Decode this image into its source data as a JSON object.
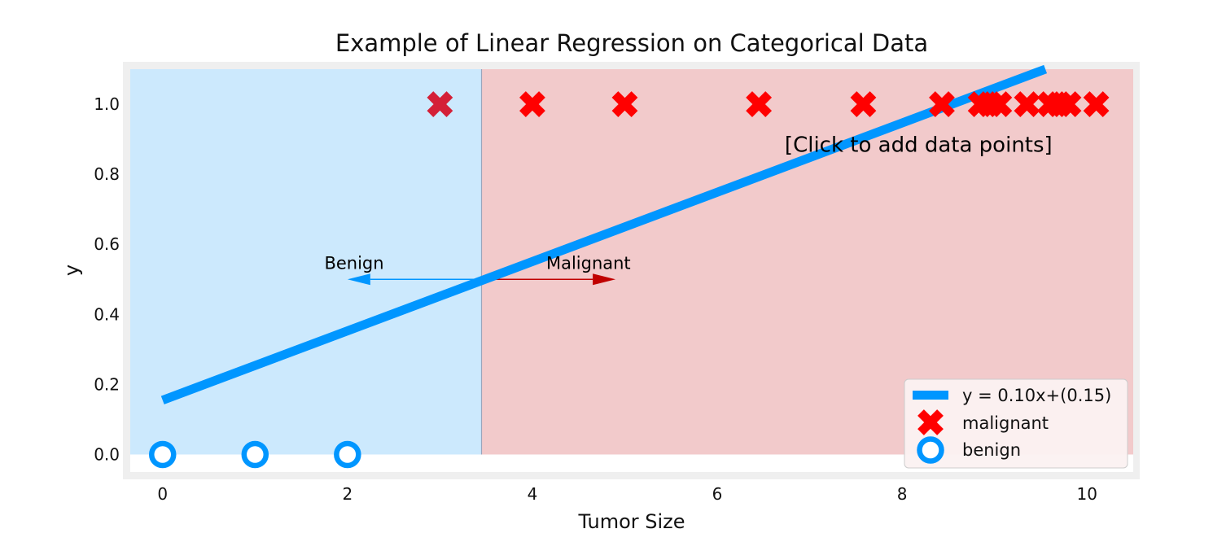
{
  "chart_data": {
    "type": "scatter",
    "title": "Example of Linear Regression on Categorical Data",
    "xlabel": "Tumor Size",
    "ylabel": "y",
    "xlim": [
      -0.35,
      10.5
    ],
    "ylim": [
      -0.05,
      1.1
    ],
    "x_ticks": [
      0,
      2,
      4,
      6,
      8,
      10
    ],
    "y_ticks": [
      0.0,
      0.2,
      0.4,
      0.6,
      0.8,
      1.0
    ],
    "x_tick_labels": [
      "0",
      "2",
      "4",
      "6",
      "8",
      "10"
    ],
    "y_tick_labels": [
      "0.0",
      "0.2",
      "0.4",
      "0.6",
      "0.8",
      "1.0"
    ],
    "grid": false,
    "legend_position": "lower-right",
    "decision_boundary_x": 3.45,
    "regions": [
      {
        "x_from": -0.35,
        "x_to": 3.45,
        "color": "#cce9fd"
      },
      {
        "x_from": 3.45,
        "x_to": 10.5,
        "color": "#f2cacb"
      }
    ],
    "series": [
      {
        "name": "y = 0.10x+(0.15)",
        "kind": "line",
        "color": "#0096ff",
        "x": [
          0,
          9.55
        ],
        "y": [
          0.155,
          1.1
        ]
      },
      {
        "name": "malignant",
        "kind": "scatter",
        "marker": "x",
        "color": "#ff0000",
        "x": [
          3,
          4,
          5,
          6.45,
          7.58,
          8.43,
          8.85,
          8.95,
          9.05,
          9.35,
          9.6,
          9.7,
          9.8,
          10.1
        ],
        "y": [
          1,
          1,
          1,
          1,
          1,
          1,
          1,
          1,
          1,
          1,
          1,
          1,
          1,
          1
        ]
      },
      {
        "name": "benign",
        "kind": "scatter",
        "marker": "o",
        "color": "#0096ff",
        "x": [
          0,
          1,
          2
        ],
        "y": [
          0,
          0,
          0
        ]
      }
    ],
    "annotations": [
      {
        "text": "Benign",
        "x": 1.75,
        "y": 0.53,
        "arrow_from": 3.45,
        "arrow_to": 2.0,
        "arrow_y": 0.5,
        "color": "#0096ff"
      },
      {
        "text": "Malignant",
        "x": 4.15,
        "y": 0.53,
        "arrow_from": 3.45,
        "arrow_to": 4.9,
        "arrow_y": 0.5,
        "color": "#c00000"
      },
      {
        "text": "[Click to add data points]",
        "x": 6.73,
        "y": 0.885
      }
    ]
  }
}
